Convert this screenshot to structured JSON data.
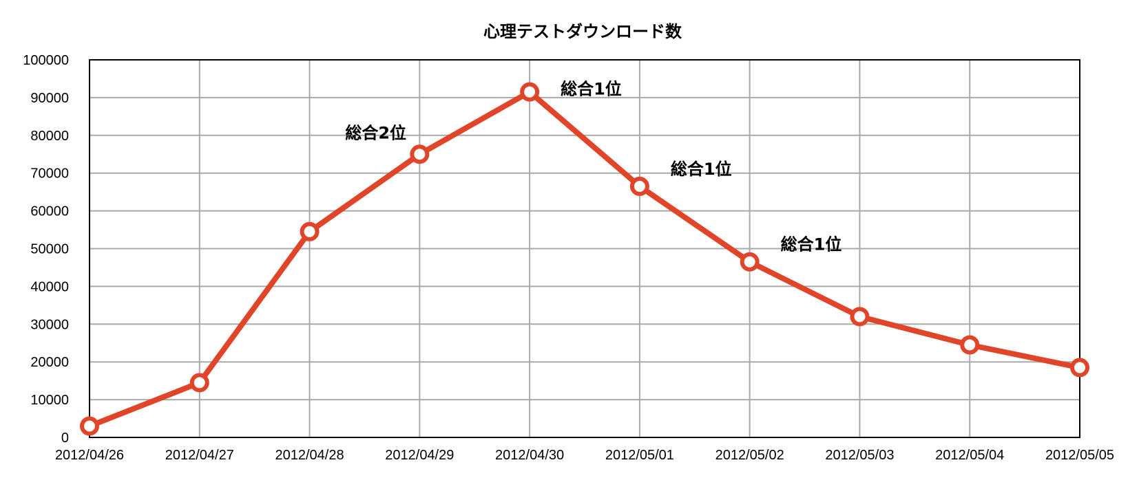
{
  "chart_data": {
    "type": "line",
    "title": "心理テストダウンロード数",
    "xlabel": "",
    "ylabel": "",
    "categories": [
      "2012/04/26",
      "2012/04/27",
      "2012/04/28",
      "2012/04/29",
      "2012/04/30",
      "2012/05/01",
      "2012/05/02",
      "2012/05/03",
      "2012/05/04",
      "2012/05/05"
    ],
    "y_ticks": [
      "0",
      "10000",
      "20000",
      "30000",
      "40000",
      "50000",
      "60000",
      "70000",
      "80000",
      "90000",
      "100000"
    ],
    "series": [
      {
        "values": [
          3000,
          14500,
          54500,
          75000,
          91500,
          66500,
          46500,
          32000,
          24500,
          18500
        ],
        "color": "#e0452a"
      }
    ],
    "annotations": [
      {
        "index": 3,
        "text": "総合2位"
      },
      {
        "index": 4,
        "text": "総合1位"
      },
      {
        "index": 5,
        "text": "総合1位"
      },
      {
        "index": 6,
        "text": "総合1位"
      }
    ],
    "ylim": [
      0,
      100000
    ],
    "grid": true,
    "legend": "none"
  }
}
